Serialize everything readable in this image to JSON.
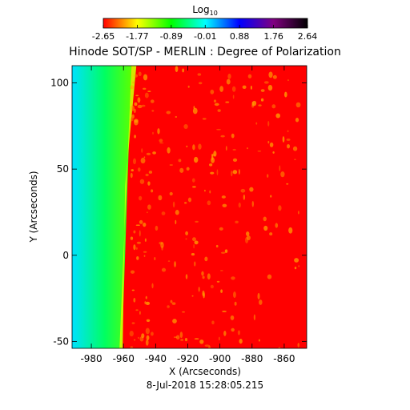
{
  "chart_data": {
    "type": "heatmap",
    "title": "Hinode SOT/SP - MERLIN : Degree of Polarization",
    "xlabel": "X (Arcseconds)",
    "ylabel": "Y (Arcseconds)",
    "date_label": "8-Jul-2018 15:28:05.215",
    "xlim": [
      -992,
      -846
    ],
    "ylim": [
      -54,
      110
    ],
    "x_ticks": [
      -980,
      -960,
      -940,
      -920,
      -900,
      -880,
      -860
    ],
    "x_tick_labels": [
      "-980",
      "-960",
      "-940",
      "-920",
      "-900",
      "-880",
      "-860"
    ],
    "y_ticks": [
      -50,
      0,
      50,
      100
    ],
    "y_tick_labels": [
      "-50",
      "0",
      "50",
      "100"
    ],
    "colorbar": {
      "label_base": "Log",
      "label_sub": "10",
      "range": [
        -2.65,
        2.64
      ],
      "ticks": [
        -2.65,
        -1.77,
        -0.89,
        -0.01,
        0.88,
        1.76,
        2.64
      ],
      "tick_labels": [
        "-2.65",
        "-1.77",
        "-0.89",
        "-0.01",
        "0.88",
        "1.76",
        "2.64"
      ],
      "colormap": [
        "#ff0000",
        "#ffff00",
        "#00ff00",
        "#00ffff",
        "#0000ff",
        "#800080",
        "#000000"
      ]
    },
    "regions": {
      "off_limb_value_at_edge": 0.1,
      "off_limb_value_near_limb": -1.2,
      "limb_band_value": -1.6,
      "disk_value": -2.65,
      "limb_x_at_y_min": -961,
      "limb_x_at_y_max": -955,
      "bright_band_x_at_y_max": -952,
      "plage_value": -2.1
    }
  }
}
